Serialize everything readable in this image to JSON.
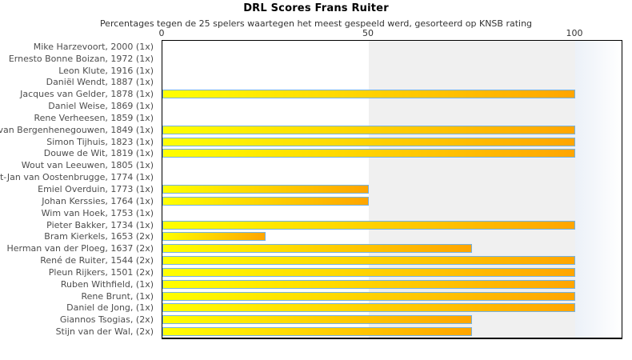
{
  "colors": {
    "bar_gradient_start": "#ffff00",
    "bar_gradient_end": "#ffa500",
    "bar_border": "#74b2e2",
    "band_grey": "#f0f0f0",
    "band_fade": "#ecf1f8",
    "plot_border": "#000000",
    "label_text": "#4d4d4d"
  },
  "chart_data": {
    "type": "bar",
    "orientation": "horizontal",
    "title": "DRL Scores Frans Ruiter",
    "subtitle": "Percentages tegen de 25 spelers waartegen het meest gespeeld werd, gesorteerd op KNSB rating",
    "xlabel": "",
    "ylabel": "",
    "axis": {
      "position": "top",
      "min": 0,
      "max": 111,
      "ticks": [
        0,
        50,
        100
      ]
    },
    "grid": "alternating band 50-100 shaded grey",
    "legend": "none",
    "categories": [
      "Mike Harzevoort, 2000 (1x)",
      "Ernesto Bonne Boizan, 1972 (1x)",
      "Leon Klute, 1916 (1x)",
      "Daniël Wendt, 1887 (1x)",
      "Jacques van Gelder, 1878 (1x)",
      "Daniel Weise, 1869 (1x)",
      "Rene Verheesen, 1859 (1x)",
      "van Bergenhenegouwen, 1849 (1x)",
      "Simon Tijhuis, 1823 (1x)",
      "Douwe de Wit, 1819 (1x)",
      "Wout van Leeuwen, 1805 (1x)",
      "t-Jan van Oostenbrugge, 1774 (1x)",
      "Emiel Overduin, 1773 (1x)",
      "Johan Kerssies, 1764 (1x)",
      "Wim van Hoek, 1753 (1x)",
      "Pieter Bakker, 1734 (1x)",
      "Bram Kierkels, 1653 (2x)",
      "Herman van der Ploeg, 1637 (2x)",
      "René de Ruiter, 1544 (2x)",
      "Pleun Rijkers, 1501 (2x)",
      "Ruben Withfield,  (1x)",
      "Rene Brunt,  (1x)",
      "Daniel de Jong,  (1x)",
      "Giannos Tsogias,  (2x)",
      "Stijn van der Wal,  (2x)"
    ],
    "values": [
      0,
      0,
      0,
      0,
      100,
      0,
      0,
      100,
      100,
      100,
      0,
      0,
      50,
      50,
      0,
      100,
      25,
      75,
      100,
      100,
      100,
      100,
      100,
      75,
      75
    ]
  }
}
